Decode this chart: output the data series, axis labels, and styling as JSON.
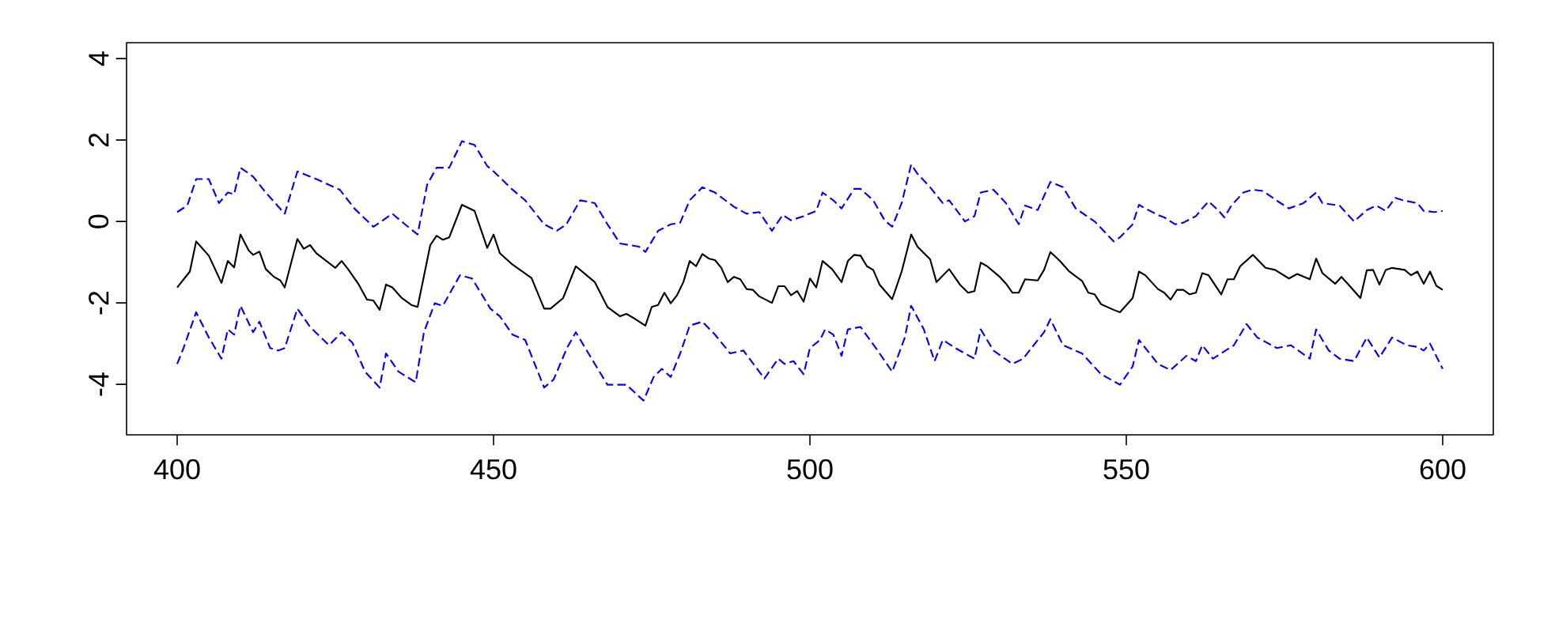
{
  "chart_data": {
    "type": "line",
    "xlim": [
      392,
      608
    ],
    "ylim": [
      -5.24,
      4.39
    ],
    "xticks": [
      400,
      450,
      500,
      550,
      600
    ],
    "yticks": [
      -4,
      -2,
      0,
      2,
      4
    ],
    "marker": "none",
    "series": [
      {
        "color": "#000000",
        "line_style": "solid",
        "x": [
          400,
          402,
          403,
          405,
          407,
          408,
          409,
          410,
          411.3,
          412,
          413,
          414,
          415.3,
          416.3,
          417,
          419,
          420,
          421,
          422,
          425,
          426,
          427,
          428.7,
          430,
          431,
          432,
          433,
          434,
          435.5,
          437,
          438,
          440,
          441,
          442,
          443,
          445,
          447,
          449,
          450,
          451,
          453,
          456,
          458,
          459,
          461,
          463,
          465,
          466,
          468,
          470,
          471,
          472,
          474,
          475,
          476,
          477,
          478,
          479,
          480,
          481,
          482,
          483,
          484,
          485,
          486,
          487,
          488,
          489,
          490,
          491,
          492,
          494,
          495,
          496,
          497,
          498,
          499,
          500,
          501,
          502,
          503.5,
          505,
          506,
          507,
          508,
          509,
          510,
          511,
          513,
          514.5,
          516,
          517,
          519,
          520,
          522,
          523.7,
          525,
          526,
          527,
          528,
          530,
          531,
          532,
          533,
          534,
          536,
          537,
          538,
          539.5,
          541,
          543,
          544,
          545,
          546,
          548,
          549,
          551,
          552,
          553,
          555,
          556,
          557,
          558,
          559,
          560,
          561,
          562,
          563,
          565,
          566,
          567,
          568,
          570,
          572,
          573.5,
          575.7,
          577,
          579,
          580,
          581,
          583,
          584,
          585,
          587,
          588,
          589,
          590,
          591,
          592,
          594,
          595,
          596,
          597,
          598,
          599,
          600
        ],
        "values": [
          -1.62,
          -1.23,
          -0.49,
          -0.84,
          -1.51,
          -0.97,
          -1.13,
          -0.32,
          -0.71,
          -0.82,
          -0.74,
          -1.17,
          -1.36,
          -1.45,
          -1.62,
          -0.43,
          -0.67,
          -0.58,
          -0.78,
          -1.14,
          -0.97,
          -1.17,
          -1.55,
          -1.92,
          -1.94,
          -2.17,
          -1.55,
          -1.62,
          -1.88,
          -2.05,
          -2.1,
          -0.58,
          -0.35,
          -0.45,
          -0.39,
          0.41,
          0.26,
          -0.65,
          -0.32,
          -0.78,
          -1.06,
          -1.39,
          -2.14,
          -2.14,
          -1.88,
          -1.1,
          -1.36,
          -1.49,
          -2.1,
          -2.33,
          -2.27,
          -2.36,
          -2.56,
          -2.1,
          -2.05,
          -1.75,
          -2.01,
          -1.81,
          -1.49,
          -0.97,
          -1.1,
          -0.8,
          -0.91,
          -0.95,
          -1.14,
          -1.49,
          -1.36,
          -1.42,
          -1.66,
          -1.68,
          -1.84,
          -2.0,
          -1.59,
          -1.59,
          -1.81,
          -1.71,
          -1.97,
          -1.4,
          -1.62,
          -0.97,
          -1.17,
          -1.49,
          -0.97,
          -0.82,
          -0.84,
          -1.1,
          -1.19,
          -1.55,
          -1.91,
          -1.23,
          -0.32,
          -0.62,
          -0.93,
          -1.49,
          -1.17,
          -1.55,
          -1.75,
          -1.71,
          -1.01,
          -1.1,
          -1.36,
          -1.53,
          -1.75,
          -1.75,
          -1.42,
          -1.45,
          -1.19,
          -0.75,
          -0.97,
          -1.23,
          -1.46,
          -1.75,
          -1.79,
          -2.03,
          -2.17,
          -2.23,
          -1.88,
          -1.23,
          -1.32,
          -1.66,
          -1.75,
          -1.92,
          -1.68,
          -1.68,
          -1.79,
          -1.75,
          -1.27,
          -1.32,
          -1.79,
          -1.42,
          -1.42,
          -1.1,
          -0.82,
          -1.14,
          -1.19,
          -1.4,
          -1.29,
          -1.42,
          -0.91,
          -1.27,
          -1.53,
          -1.36,
          -1.53,
          -1.88,
          -1.2,
          -1.19,
          -1.55,
          -1.19,
          -1.14,
          -1.19,
          -1.32,
          -1.23,
          -1.53,
          -1.23,
          -1.58,
          -1.68
        ]
      },
      {
        "color": "#0000ff",
        "line_style": "dashed",
        "x": [
          400,
          401.6,
          403,
          405,
          406.6,
          408,
          409,
          410,
          412,
          414,
          417,
          419,
          422,
          425.7,
          428,
          431,
          432,
          434,
          436,
          438,
          439.5,
          441,
          443,
          445,
          447,
          449,
          450,
          453,
          455,
          458,
          460,
          461.5,
          463.7,
          466,
          468,
          470,
          473,
          474,
          476,
          478,
          479.5,
          481,
          483,
          485,
          488,
          490,
          492,
          494,
          495.7,
          497,
          499,
          501,
          502,
          503.7,
          505,
          507,
          508,
          510,
          511.8,
          513,
          514.5,
          516,
          517,
          519,
          521,
          522,
          524.5,
          526,
          527,
          529,
          531,
          533,
          534,
          536,
          538,
          540,
          542,
          545,
          548,
          549,
          551,
          552,
          553,
          555,
          556,
          557.7,
          559,
          561,
          562,
          563,
          564.5,
          565.5,
          566.6,
          568.5,
          570,
          571.6,
          573.7,
          575.7,
          578,
          580,
          581,
          583.7,
          586,
          588,
          589.5,
          591,
          592.5,
          593.7,
          596,
          597,
          598.7,
          600
        ],
        "values": [
          0.23,
          0.39,
          1.04,
          1.04,
          0.45,
          0.71,
          0.67,
          1.32,
          1.1,
          0.71,
          0.19,
          1.23,
          1.04,
          0.78,
          0.32,
          -0.13,
          -0.03,
          0.19,
          -0.07,
          -0.32,
          0.9,
          1.32,
          1.32,
          1.97,
          1.88,
          1.36,
          1.23,
          0.78,
          0.52,
          -0.07,
          -0.23,
          -0.07,
          0.52,
          0.45,
          -0.07,
          -0.54,
          -0.62,
          -0.75,
          -0.23,
          -0.07,
          -0.03,
          0.52,
          0.84,
          0.71,
          0.36,
          0.19,
          0.23,
          -0.23,
          0.16,
          0.03,
          0.13,
          0.26,
          0.71,
          0.52,
          0.32,
          0.8,
          0.8,
          0.52,
          0.03,
          -0.13,
          0.45,
          1.4,
          1.17,
          0.84,
          0.45,
          0.52,
          0.0,
          0.13,
          0.71,
          0.78,
          0.45,
          -0.07,
          0.39,
          0.28,
          0.97,
          0.84,
          0.32,
          0.0,
          -0.49,
          -0.39,
          -0.07,
          0.41,
          0.32,
          0.16,
          0.1,
          -0.07,
          -0.03,
          0.13,
          0.32,
          0.49,
          0.28,
          0.1,
          0.39,
          0.71,
          0.78,
          0.75,
          0.52,
          0.32,
          0.45,
          0.71,
          0.45,
          0.39,
          0.0,
          0.28,
          0.39,
          0.26,
          0.58,
          0.52,
          0.45,
          0.26,
          0.23,
          0.26
        ]
      },
      {
        "color": "#0000ff",
        "line_style": "dashed",
        "x": [
          400,
          401,
          403,
          405,
          407,
          408,
          409,
          410,
          412,
          413,
          414.7,
          416,
          417,
          419,
          421,
          424,
          426,
          427.7,
          429.7,
          432,
          433,
          435,
          437.7,
          439,
          440.7,
          442,
          444.7,
          446.6,
          449.5,
          451,
          453,
          455,
          458,
          459.5,
          461.6,
          463,
          465,
          468,
          471,
          473.7,
          475.3,
          476.6,
          478,
          479.5,
          481,
          483,
          485,
          487.4,
          489.5,
          492.8,
          495,
          496,
          497.4,
          499,
          500,
          501.6,
          502.4,
          503.7,
          505,
          506,
          508,
          510.7,
          513,
          515,
          516,
          518,
          519.7,
          521,
          523,
          526,
          527,
          529,
          532,
          533.7,
          535,
          537,
          538,
          540,
          543,
          546,
          549,
          551,
          552,
          553.7,
          555,
          557,
          559.5,
          561,
          562,
          563.7,
          565,
          567,
          569,
          570.7,
          573.8,
          576,
          579,
          580,
          582,
          583.7,
          586,
          588,
          590,
          592,
          594.3,
          596,
          597,
          598,
          600
        ],
        "values": [
          -3.5,
          -3.11,
          -2.23,
          -2.85,
          -3.37,
          -2.65,
          -2.78,
          -2.07,
          -2.72,
          -2.46,
          -3.11,
          -3.17,
          -3.11,
          -2.14,
          -2.59,
          -3.04,
          -2.72,
          -2.98,
          -3.69,
          -4.08,
          -3.24,
          -3.69,
          -3.95,
          -2.72,
          -2.01,
          -2.07,
          -1.32,
          -1.4,
          -2.14,
          -2.33,
          -2.78,
          -2.91,
          -4.08,
          -3.88,
          -3.11,
          -2.72,
          -3.24,
          -4.01,
          -4.01,
          -4.4,
          -3.82,
          -3.62,
          -3.82,
          -3.24,
          -2.56,
          -2.46,
          -2.78,
          -3.24,
          -3.17,
          -3.86,
          -3.37,
          -3.5,
          -3.43,
          -3.75,
          -3.11,
          -2.91,
          -2.65,
          -2.78,
          -3.3,
          -2.65,
          -2.59,
          -3.17,
          -3.69,
          -2.85,
          -2.07,
          -2.65,
          -3.43,
          -2.91,
          -3.11,
          -3.37,
          -2.65,
          -3.17,
          -3.5,
          -3.37,
          -3.11,
          -2.72,
          -2.4,
          -3.04,
          -3.24,
          -3.75,
          -4.01,
          -3.56,
          -2.91,
          -3.24,
          -3.5,
          -3.65,
          -3.3,
          -3.43,
          -3.04,
          -3.37,
          -3.24,
          -3.04,
          -2.52,
          -2.85,
          -3.11,
          -3.04,
          -3.37,
          -2.65,
          -3.17,
          -3.37,
          -3.43,
          -2.85,
          -3.34,
          -2.85,
          -3.04,
          -3.08,
          -3.17,
          -3.0,
          -3.62
        ]
      }
    ]
  }
}
